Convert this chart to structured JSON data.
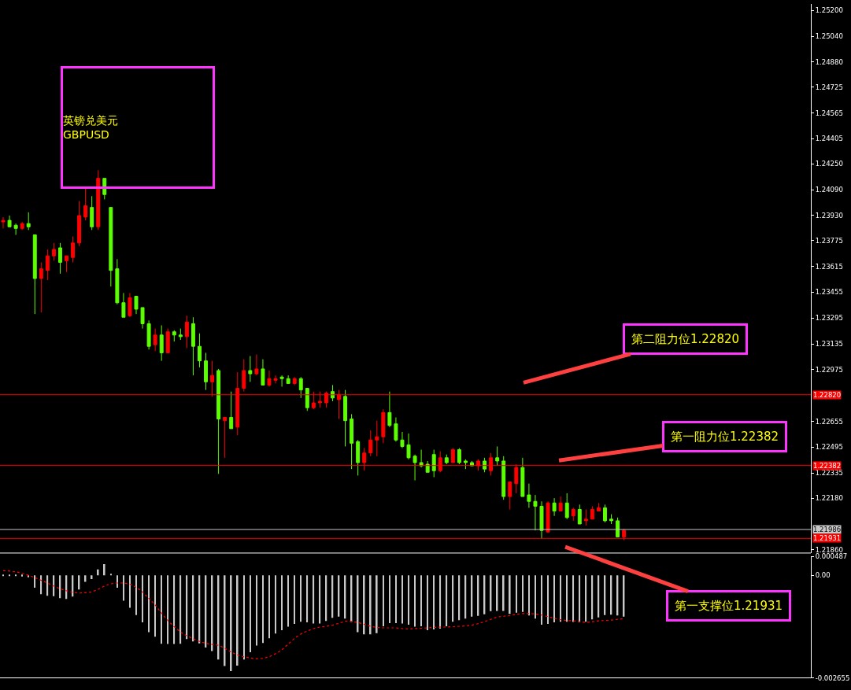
{
  "chart_data": [
    {
      "type": "candlestick",
      "annotations": [
        "英镑兑美元\nGBPUSD",
        "第二阻力位1.22820",
        "第一阻力位1.22382",
        "第一支撑位1.21931"
      ],
      "categories": [
        null,
        null,
        null,
        null,
        null,
        null,
        null,
        null,
        null,
        null,
        null,
        null,
        null,
        null,
        null,
        null,
        null,
        null,
        null,
        null,
        null,
        null,
        null,
        null,
        null,
        null,
        null,
        null,
        null,
        null,
        null,
        null,
        null,
        null,
        null,
        null,
        null,
        null,
        null,
        null,
        null,
        null,
        null,
        null,
        null,
        null,
        null,
        null,
        null,
        null,
        null,
        null,
        null,
        null,
        null,
        null,
        null,
        null,
        null,
        null,
        null,
        null,
        null,
        null,
        null,
        null,
        null,
        null,
        null,
        null,
        null,
        null,
        null,
        null,
        null,
        null,
        null,
        null,
        null,
        null,
        null,
        null,
        null,
        null,
        null,
        null,
        null,
        null,
        null,
        null,
        null,
        null,
        null,
        null,
        null,
        null,
        null,
        null,
        null,
        null,
        null,
        null,
        null,
        null,
        null,
        null,
        null,
        null,
        null,
        null,
        null,
        null,
        null,
        null,
        null,
        null,
        null,
        null,
        null,
        null,
        null,
        null,
        null,
        null,
        null,
        null,
        null,
        null
      ],
      "ohlc": [
        [
          1.2389,
          1.2392,
          1.2385,
          1.239
        ],
        [
          1.239,
          1.2393,
          1.2386,
          1.2386
        ],
        [
          1.2387,
          1.2388,
          1.2381,
          1.2385
        ],
        [
          1.2385,
          1.2389,
          1.2384,
          1.2388
        ],
        [
          1.2388,
          1.2395,
          1.2384,
          1.2386
        ],
        [
          1.2381,
          1.2381,
          1.2332,
          1.2354
        ],
        [
          1.2354,
          1.2364,
          1.2333,
          1.236
        ],
        [
          1.2359,
          1.2372,
          1.2353,
          1.2368
        ],
        [
          1.2368,
          1.2376,
          1.2365,
          1.2372
        ],
        [
          1.2373,
          1.2376,
          1.2357,
          1.2364
        ],
        [
          1.2365,
          1.2368,
          1.2358,
          1.2368
        ],
        [
          1.2367,
          1.238,
          1.2364,
          1.2376
        ],
        [
          1.2376,
          1.2402,
          1.2374,
          1.2393
        ],
        [
          1.2392,
          1.241,
          1.239,
          1.2399
        ],
        [
          1.2398,
          1.2405,
          1.2384,
          1.2386
        ],
        [
          1.2386,
          1.2421,
          1.2384,
          1.2416
        ],
        [
          1.2416,
          1.2416,
          1.2403,
          1.2406
        ],
        [
          1.2398,
          1.2398,
          1.2349,
          1.2359
        ],
        [
          1.236,
          1.2366,
          1.2338,
          1.2339
        ],
        [
          1.2339,
          1.2345,
          1.233,
          1.233
        ],
        [
          1.2331,
          1.2345,
          1.233,
          1.2342
        ],
        [
          1.2343,
          1.2343,
          1.2332,
          1.2335
        ],
        [
          1.2336,
          1.2336,
          1.2323,
          1.2326
        ],
        [
          1.2326,
          1.2328,
          1.231,
          1.2312
        ],
        [
          1.2313,
          1.2323,
          1.2309,
          1.2319
        ],
        [
          1.2319,
          1.2325,
          1.2303,
          1.2308
        ],
        [
          1.2308,
          1.2323,
          1.2308,
          1.2321
        ],
        [
          1.2321,
          1.2322,
          1.2315,
          1.2319
        ],
        [
          1.2319,
          1.2323,
          1.2316,
          1.2318
        ],
        [
          1.2318,
          1.2331,
          1.2311,
          1.2327
        ],
        [
          1.2326,
          1.233,
          1.2294,
          1.2312
        ],
        [
          1.2312,
          1.232,
          1.2299,
          1.2303
        ],
        [
          1.2303,
          1.2308,
          1.2285,
          1.229
        ],
        [
          1.229,
          1.2303,
          1.2281,
          1.2294
        ],
        [
          1.2297,
          1.2298,
          1.2233,
          1.2267
        ],
        [
          1.2266,
          1.2268,
          1.2243,
          1.2268
        ],
        [
          1.2268,
          1.2284,
          1.2261,
          1.2261
        ],
        [
          1.2262,
          1.2296,
          1.2257,
          1.2286
        ],
        [
          1.2286,
          1.2304,
          1.2284,
          1.2297
        ],
        [
          1.2297,
          1.2306,
          1.229,
          1.2295
        ],
        [
          1.2295,
          1.2307,
          1.2294,
          1.2298
        ],
        [
          1.2298,
          1.2304,
          1.2288,
          1.2288
        ],
        [
          1.2288,
          1.2297,
          1.2287,
          1.2292
        ],
        [
          1.2291,
          1.2294,
          1.2289,
          1.2292
        ],
        [
          1.2293,
          1.2294,
          1.2287,
          1.2292
        ],
        [
          1.2292,
          1.2294,
          1.2289,
          1.2289
        ],
        [
          1.2289,
          1.2293,
          1.2288,
          1.2292
        ],
        [
          1.2292,
          1.2293,
          1.228,
          1.2285
        ],
        [
          1.2286,
          1.2286,
          1.2272,
          1.2274
        ],
        [
          1.2274,
          1.2284,
          1.2273,
          1.2277
        ],
        [
          1.2277,
          1.2284,
          1.2274,
          1.2278
        ],
        [
          1.2277,
          1.2284,
          1.2274,
          1.2283
        ],
        [
          1.2284,
          1.2288,
          1.2278,
          1.228
        ],
        [
          1.2279,
          1.2285,
          1.2267,
          1.2282
        ],
        [
          1.2281,
          1.2285,
          1.225,
          1.2266
        ],
        [
          1.2267,
          1.227,
          1.2236,
          1.2252
        ],
        [
          1.2253,
          1.2254,
          1.2232,
          1.224
        ],
        [
          1.224,
          1.2249,
          1.2235,
          1.2246
        ],
        [
          1.2246,
          1.226,
          1.2244,
          1.2254
        ],
        [
          1.2254,
          1.2266,
          1.2244,
          1.2256
        ],
        [
          1.2256,
          1.2273,
          1.2252,
          1.2271
        ],
        [
          1.2271,
          1.2284,
          1.2262,
          1.2263
        ],
        [
          1.2264,
          1.2268,
          1.2253,
          1.2254
        ],
        [
          1.2254,
          1.2259,
          1.2249,
          1.225
        ],
        [
          1.2251,
          1.2258,
          1.2242,
          1.2243
        ],
        [
          1.2244,
          1.2245,
          1.2229,
          1.224
        ],
        [
          1.224,
          1.2248,
          1.2237,
          1.2238
        ],
        [
          1.2239,
          1.2241,
          1.2234,
          1.2234
        ],
        [
          1.2245,
          1.2248,
          1.2231,
          1.2235
        ],
        [
          1.2235,
          1.2247,
          1.2234,
          1.2243
        ],
        [
          1.2243,
          1.2245,
          1.2239,
          1.224
        ],
        [
          1.224,
          1.2249,
          1.224,
          1.2248
        ],
        [
          1.2248,
          1.2249,
          1.2239,
          1.224
        ],
        [
          1.2241,
          1.2242,
          1.2236,
          1.224
        ],
        [
          1.224,
          1.2241,
          1.2238,
          1.2238
        ],
        [
          1.2238,
          1.2242,
          1.2235,
          1.2241
        ],
        [
          1.2241,
          1.2243,
          1.2234,
          1.2236
        ],
        [
          1.2235,
          1.2246,
          1.2232,
          1.2243
        ],
        [
          1.2243,
          1.225,
          1.2238,
          1.2241
        ],
        [
          1.2241,
          1.2244,
          1.2217,
          1.2219
        ],
        [
          1.2219,
          1.2228,
          1.2211,
          1.2228
        ],
        [
          1.2227,
          1.2239,
          1.2221,
          1.2237
        ],
        [
          1.2237,
          1.2243,
          1.2219,
          1.2219
        ],
        [
          1.222,
          1.2227,
          1.2212,
          1.2216
        ],
        [
          1.2216,
          1.222,
          1.2198,
          1.2213
        ],
        [
          1.2213,
          1.2216,
          1.2193,
          1.2198
        ],
        [
          1.2197,
          1.2216,
          1.2197,
          1.2215
        ],
        [
          1.2215,
          1.2218,
          1.2207,
          1.221
        ],
        [
          1.221,
          1.2219,
          1.221,
          1.2215
        ],
        [
          1.2215,
          1.2221,
          1.2205,
          1.2206
        ],
        [
          1.2207,
          1.2212,
          1.2204,
          1.2211
        ],
        [
          1.2211,
          1.2214,
          1.2202,
          1.2202
        ],
        [
          1.2204,
          1.2211,
          1.2201,
          1.2205
        ],
        [
          1.2205,
          1.2213,
          1.2205,
          1.2211
        ],
        [
          1.221,
          1.2215,
          1.221,
          1.2212
        ],
        [
          1.2212,
          1.2214,
          1.2203,
          1.2204
        ],
        [
          1.2205,
          1.2208,
          1.2202,
          1.2204
        ],
        [
          1.2204,
          1.2206,
          1.2194,
          1.2194
        ],
        [
          1.2194,
          1.2199,
          1.2192,
          1.2198
        ],
        null,
        null,
        null,
        null,
        null,
        null,
        null,
        null,
        null,
        null,
        null,
        null,
        null,
        null,
        null,
        null,
        null,
        null,
        null,
        null,
        null,
        null,
        null,
        null,
        null,
        null,
        null,
        null,
        null
      ],
      "colors": [
        "#ff0000",
        "#5cff00",
        "#5cff00",
        "#ff0000",
        "#5cff00",
        "#5cff00",
        "#ff0000",
        "#ff0000",
        "#ff0000",
        "#5cff00",
        "#ff0000",
        "#ff0000",
        "#ff0000",
        "#ff0000",
        "#5cff00",
        "#ff0000",
        "#5cff00",
        "#5cff00",
        "#5cff00",
        "#5cff00",
        "#ff0000",
        "#5cff00",
        "#5cff00",
        "#5cff00",
        "#ff0000",
        "#5cff00",
        "#ff0000",
        "#5cff00",
        "#5cff00",
        "#ff0000",
        "#5cff00",
        "#5cff00",
        "#5cff00",
        "#ff0000",
        "#5cff00",
        "#ff0000",
        "#5cff00",
        "#ff0000",
        "#ff0000",
        "#5cff00",
        "#ff0000",
        "#5cff00",
        "#ff0000",
        "#ff0000",
        "#5cff00",
        "#5cff00",
        "#ff0000",
        "#5cff00",
        "#5cff00",
        "#ff0000",
        "#ff0000",
        "#ff0000",
        "#5cff00",
        "#ff0000",
        "#5cff00",
        "#5cff00",
        "#5cff00",
        "#ff0000",
        "#ff0000",
        "#ff0000",
        "#ff0000",
        "#5cff00",
        "#5cff00",
        "#5cff00",
        "#5cff00",
        "#5cff00",
        "#5cff00",
        "#5cff00",
        "#5cff00",
        "#ff0000",
        "#5cff00",
        "#ff0000",
        "#5cff00",
        "#5cff00",
        "#5cff00",
        "#ff0000",
        "#5cff00",
        "#ff0000",
        "#5cff00",
        "#5cff00",
        "#ff0000",
        "#ff0000",
        "#5cff00",
        "#5cff00",
        "#5cff00",
        "#5cff00",
        "#ff0000",
        "#5cff00",
        "#ff0000",
        "#5cff00",
        "#ff0000",
        "#5cff00",
        "#ff0000",
        "#ff0000",
        "#ff0000",
        "#5cff00",
        "#5cff00",
        "#5cff00",
        "#ff0000",
        null,
        null,
        null,
        null,
        null,
        null,
        null,
        null,
        null,
        null,
        null,
        null,
        null,
        null,
        null,
        null,
        null,
        null,
        null,
        null,
        null,
        null,
        null,
        null,
        null,
        null,
        null,
        null,
        null
      ],
      "ylim": [
        1.2184,
        1.2524
      ],
      "yticks": [
        {
          "value": 1.252,
          "label": "1.25200"
        },
        {
          "value": 1.2504,
          "label": "1.25040"
        },
        {
          "value": 1.2488,
          "label": "1.24880"
        },
        {
          "value": 1.24725,
          "label": "1.24725"
        },
        {
          "value": 1.24565,
          "label": "1.24565"
        },
        {
          "value": 1.24405,
          "label": "1.24405"
        },
        {
          "value": 1.2425,
          "label": "1.24250"
        },
        {
          "value": 1.2409,
          "label": "1.24090"
        },
        {
          "value": 1.2393,
          "label": "1.23930"
        },
        {
          "value": 1.23775,
          "label": "1.23775"
        },
        {
          "value": 1.23615,
          "label": "1.23615"
        },
        {
          "value": 1.23455,
          "label": "1.23455"
        },
        {
          "value": 1.23295,
          "label": "1.23295"
        },
        {
          "value": 1.23135,
          "label": "1.23135"
        },
        {
          "value": 1.22975,
          "label": "1.22975"
        },
        {
          "value": 1.22655,
          "label": "1.22655"
        },
        {
          "value": 1.22495,
          "label": "1.22495"
        },
        {
          "value": 1.22335,
          "label": "1.22335"
        },
        {
          "value": 1.2218,
          "label": "1.22180"
        },
        {
          "value": 1.2186,
          "label": "1.21860"
        }
      ],
      "ref_lines": [
        {
          "axis": "y",
          "value": 1.2282,
          "label": "1.22820",
          "color": "#ff0000"
        },
        {
          "axis": "y",
          "value": 1.22382,
          "label": "1.22382",
          "color": "#ff0000"
        },
        {
          "axis": "y",
          "value": 1.21986,
          "label": "1.21986",
          "color": "#c8c8c8"
        },
        {
          "axis": "y",
          "value": 1.21931,
          "label": "1.21931",
          "color": "#ff0000"
        }
      ],
      "tick_labels": "y"
    },
    {
      "type": "bar",
      "categories": [
        null,
        null,
        null,
        null,
        null,
        null,
        null,
        null,
        null,
        null,
        null,
        null,
        null,
        null,
        null,
        null,
        null,
        null,
        null,
        null,
        null,
        null,
        null,
        null,
        null,
        null,
        null,
        null,
        null,
        null,
        null,
        null,
        null,
        null,
        null,
        null,
        null,
        null,
        null,
        null,
        null,
        null,
        null,
        null,
        null,
        null,
        null,
        null,
        null,
        null,
        null,
        null,
        null,
        null,
        null,
        null,
        null,
        null,
        null,
        null,
        null,
        null,
        null,
        null,
        null,
        null,
        null,
        null,
        null,
        null,
        null,
        null,
        null,
        null,
        null,
        null,
        null,
        null,
        null,
        null,
        null,
        null,
        null,
        null,
        null,
        null,
        null,
        null,
        null,
        null,
        null,
        null,
        null,
        null,
        null,
        null,
        null,
        null,
        null,
        null,
        null,
        null,
        null,
        null,
        null,
        null,
        null,
        null,
        null,
        null,
        null,
        null,
        null,
        null,
        null,
        null,
        null,
        null,
        null,
        null,
        null,
        null,
        null,
        null,
        null,
        null,
        null,
        null
      ],
      "series": [
        {
          "type": "bar",
          "color": "#c8c8c8",
          "values": [
            -2e-05,
            -2e-05,
            -2e-05,
            -3e-05,
            -5e-05,
            -0.00032,
            -0.00049,
            -0.00053,
            -0.00054,
            -0.00059,
            -0.00061,
            -0.00055,
            -0.00037,
            -0.00017,
            -0.0001,
            0.00015,
            0.00029,
            3e-05,
            -0.00032,
            -0.00066,
            -0.00084,
            -0.00103,
            -0.00122,
            -0.00147,
            -0.00159,
            -0.00177,
            -0.00178,
            -0.00178,
            -0.00177,
            -0.00165,
            -0.00171,
            -0.00176,
            -0.00187,
            -0.00196,
            -0.00218,
            -0.00235,
            -0.00248,
            -0.00234,
            -0.00218,
            -0.00199,
            -0.00182,
            -0.00175,
            -0.00163,
            -0.00151,
            -0.00142,
            -0.00133,
            -0.00126,
            -0.0012,
            -0.00122,
            -0.00125,
            -0.00125,
            -0.00118,
            -0.0011,
            -0.00107,
            -0.00112,
            -0.00121,
            -0.00147,
            -0.00153,
            -0.00153,
            -0.0015,
            -0.00132,
            -0.00124,
            -0.00124,
            -0.00125,
            -0.00128,
            -0.00133,
            -0.00132,
            -0.00142,
            -0.0014,
            -0.00138,
            -0.00132,
            -0.0012,
            -0.00116,
            -0.00112,
            -0.00107,
            -0.00105,
            -0.00101,
            -0.00093,
            -0.00092,
            -0.00092,
            -0.001,
            -0.00097,
            -0.00095,
            -0.00104,
            -0.00112,
            -0.00128,
            -0.00126,
            -0.00122,
            -0.0012,
            -0.0012,
            -0.00121,
            -0.00122,
            -0.0012,
            -0.00114,
            -0.00109,
            -0.00103,
            -0.00102,
            -0.00104,
            -0.00107,
            null,
            null,
            null,
            null,
            null,
            null,
            null,
            null,
            null,
            null,
            null,
            null,
            null,
            null,
            null,
            null,
            null,
            null,
            null,
            null,
            null,
            null,
            null,
            null,
            null,
            null,
            null,
            null,
            null
          ]
        },
        {
          "type": "line",
          "color": "#ff0000",
          "line_style": "dotted",
          "values": [
            0.00012,
            0.00011,
            9e-05,
            5e-05,
            0,
            -6e-05,
            -0.00013,
            -0.0002,
            -0.00028,
            -0.00035,
            -0.0004,
            -0.00044,
            -0.00046,
            -0.00045,
            -0.00043,
            -0.00036,
            -0.00028,
            -0.00022,
            -0.0002,
            -0.0002,
            -0.00023,
            -0.00031,
            -0.00043,
            -0.0006,
            -0.00077,
            -0.00098,
            -0.00117,
            -0.00133,
            -0.00147,
            -0.00157,
            -0.00164,
            -0.00171,
            -0.00176,
            -0.00179,
            -0.00181,
            -0.00189,
            -0.00199,
            -0.00206,
            -0.00211,
            -0.00214,
            -0.00216,
            -0.00215,
            -0.00211,
            -0.00203,
            -0.00193,
            -0.00178,
            -0.00163,
            -0.00152,
            -0.00144,
            -0.00138,
            -0.00134,
            -0.00132,
            -0.00129,
            -0.00124,
            -0.00119,
            -0.00119,
            -0.00122,
            -0.00127,
            -0.00132,
            -0.00135,
            -0.00136,
            -0.00136,
            -0.00136,
            -0.00138,
            -0.00139,
            -0.00138,
            -0.00137,
            -0.00136,
            -0.00135,
            -0.00134,
            -0.00134,
            -0.00133,
            -0.00132,
            -0.00131,
            -0.00129,
            -0.00125,
            -0.0012,
            -0.00114,
            -0.00108,
            -0.00106,
            -0.00104,
            -0.00101,
            -0.00099,
            -0.00099,
            -0.001,
            -0.00103,
            -0.00107,
            -0.00111,
            -0.00115,
            -0.00117,
            -0.00118,
            -0.0012,
            -0.00122,
            -0.0012,
            -0.00118,
            -0.00117,
            -0.00116,
            -0.00114,
            -0.00112,
            null,
            null,
            null,
            null,
            null,
            null,
            null,
            null,
            null,
            null,
            null,
            null,
            null,
            null,
            null,
            null,
            null,
            null,
            null,
            null,
            null,
            null,
            null,
            null,
            null,
            null,
            null,
            null,
            null
          ]
        }
      ],
      "ylim": [
        -0.002655,
        0.000487
      ],
      "yticks": [
        {
          "value": 0.000487,
          "label": "0.000487"
        },
        {
          "value": 0,
          "label": "0.00"
        },
        {
          "value": -0.002655,
          "label": "-0.002655"
        }
      ],
      "tick_labels": "y"
    }
  ]
}
